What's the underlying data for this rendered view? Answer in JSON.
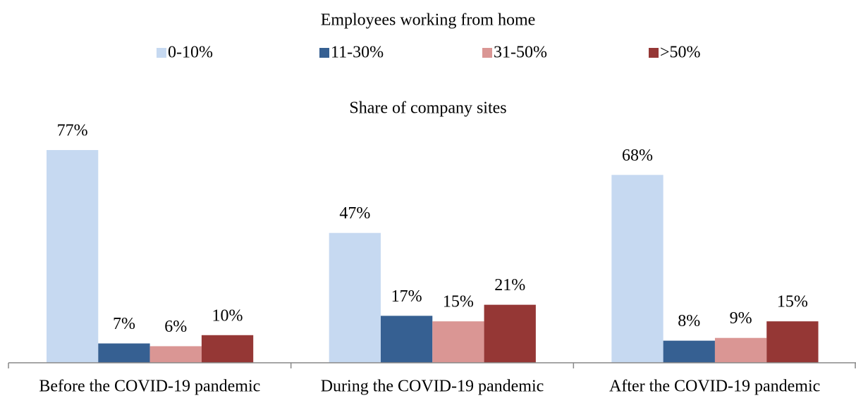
{
  "chart_data": {
    "type": "bar",
    "legend_title": "Employees working from home",
    "subtitle": "Share of company sites",
    "categories": [
      "Before the COVID-19 pandemic",
      "During the COVID-19 pandemic",
      "After the COVID-19 pandemic"
    ],
    "series": [
      {
        "name": "0-10%",
        "color": "#c6d9f1",
        "values": [
          77,
          47,
          68
        ],
        "value_labels": [
          "77%",
          "47%",
          "68%"
        ]
      },
      {
        "name": "11-30%",
        "color": "#366092",
        "values": [
          7,
          17,
          8
        ],
        "value_labels": [
          "7%",
          "17%",
          "8%"
        ]
      },
      {
        "name": "31-50%",
        "color": "#da9694",
        "values": [
          6,
          15,
          9
        ],
        "value_labels": [
          "6%",
          "15%",
          "9%"
        ]
      },
      {
        "name": ">50%",
        "color": "#953735",
        "values": [
          10,
          21,
          15
        ],
        "value_labels": [
          "10%",
          "21%",
          "15%"
        ]
      }
    ],
    "legend": "top"
  }
}
